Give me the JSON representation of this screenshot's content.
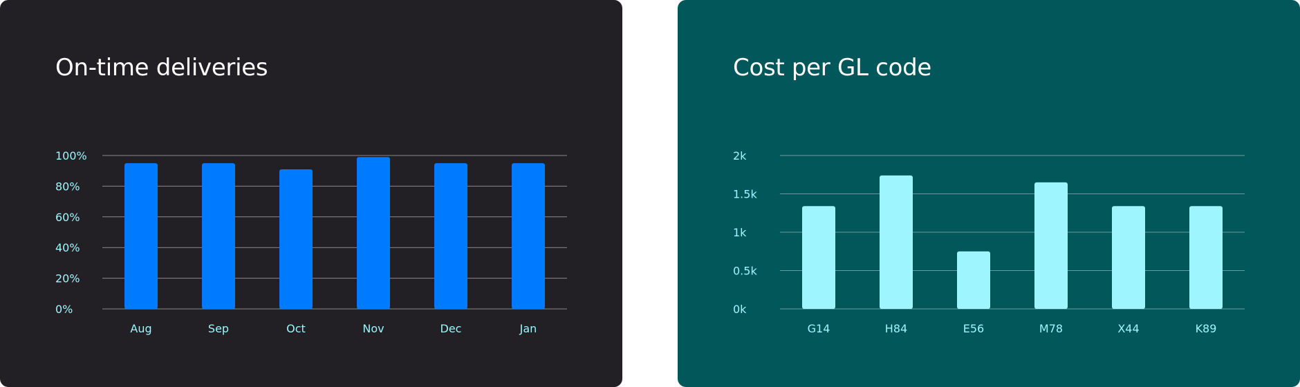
{
  "chart_data": [
    {
      "type": "bar",
      "title": "On-time deliveries",
      "categories": [
        "Aug",
        "Sep",
        "Oct",
        "Nov",
        "Dec",
        "Jan"
      ],
      "values": [
        95,
        95,
        91,
        99,
        95,
        95
      ],
      "y_ticks": [
        "0%",
        "20%",
        "40%",
        "60%",
        "80%",
        "100%"
      ],
      "ylim": [
        0,
        100
      ],
      "xlabel": "",
      "ylabel": "",
      "grid": true,
      "colors": {
        "bar": "#007bff",
        "background": "#222024",
        "grid": "#8a898d",
        "tick": "#9ff5fd",
        "title": "#ffffff"
      }
    },
    {
      "type": "bar",
      "title": "Cost per GL code",
      "categories": [
        "G14",
        "H84",
        "E56",
        "M78",
        "X44",
        "K89"
      ],
      "values": [
        1340,
        1740,
        750,
        1650,
        1340,
        1340
      ],
      "y_ticks": [
        "0k",
        "0.5k",
        "1k",
        "1.5k",
        "2k"
      ],
      "ylim": [
        0,
        2000
      ],
      "xlabel": "",
      "ylabel": "",
      "grid": true,
      "colors": {
        "bar": "#9ff5fd",
        "background": "#02575a",
        "grid": "#6b9c9e",
        "tick": "#9ff5fd",
        "title": "#ffffff"
      }
    }
  ]
}
